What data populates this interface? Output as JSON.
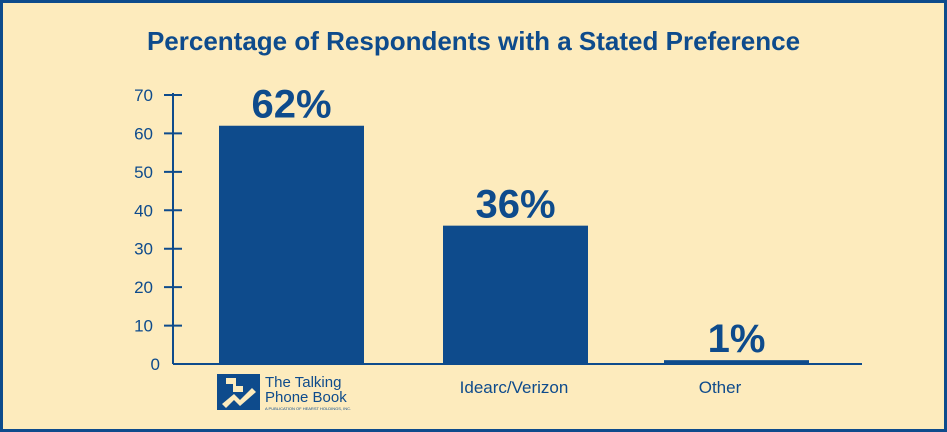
{
  "colors": {
    "background": "#fdebbd",
    "bar": "#0e4b8c",
    "text": "#0e4b8c"
  },
  "chart_data": {
    "type": "bar",
    "title": "Percentage of Respondents with a Stated Preference",
    "categories": [
      "The Talking Phone Book",
      "Idearc/Verizon",
      "Other"
    ],
    "values": [
      62,
      36,
      1
    ],
    "data_labels": [
      "62%",
      "36%",
      "1%"
    ],
    "ylim": [
      0,
      70
    ],
    "yticks": [
      0,
      10,
      20,
      30,
      40,
      50,
      60,
      70
    ],
    "xlabel": "",
    "ylabel": "",
    "grid": false,
    "legend": "none"
  },
  "logo": {
    "line1": "The Talking",
    "line2": "Phone Book",
    "tagline": "A PUBLICATION OF HEARST HOLDINGS, INC.",
    "icon": "talking-phone-book-logo-icon"
  }
}
